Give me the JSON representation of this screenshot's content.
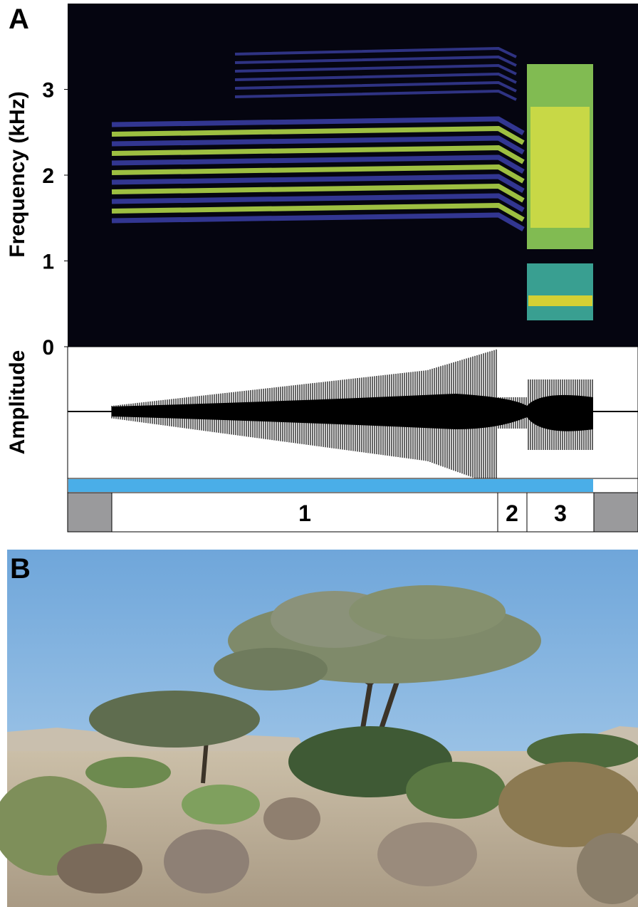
{
  "panel_a": {
    "label": "A",
    "spectrogram": {
      "y_label": "Frequency (kHz)",
      "ylim": [
        0,
        4
      ],
      "yticks": [
        0,
        1,
        2,
        3
      ]
    },
    "waveform": {
      "y_label": "Amplitude"
    },
    "segments": [
      "1",
      "2",
      "3"
    ]
  },
  "panel_b": {
    "label": "B"
  }
}
